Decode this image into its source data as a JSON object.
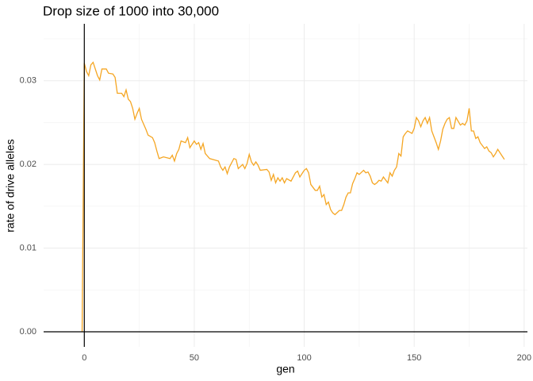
{
  "chart_data": {
    "type": "line",
    "title": "Drop size of 1000 into 30,000",
    "x_label": "gen",
    "y_label": "rate of drive alleles",
    "x": [
      -1,
      0,
      1,
      2,
      3,
      4,
      6,
      7,
      8,
      10,
      11,
      13,
      14,
      15,
      17,
      18,
      19,
      20,
      21,
      22,
      23,
      24,
      25,
      26,
      28,
      29,
      31,
      32,
      33,
      34,
      36,
      39,
      40,
      41,
      42,
      43,
      44,
      46,
      47,
      48,
      50,
      51,
      52,
      53,
      54,
      55,
      57,
      61,
      62,
      63,
      64,
      65,
      66,
      68,
      69,
      70,
      72,
      73,
      74,
      75,
      76,
      77,
      78,
      79,
      80,
      83,
      84,
      85,
      86,
      87,
      88,
      89,
      90,
      91,
      92,
      94,
      95,
      96,
      97,
      98,
      99,
      100,
      101,
      102,
      103,
      105,
      106,
      107,
      108,
      109,
      110,
      111,
      112,
      113,
      114,
      116,
      117,
      118,
      119,
      120,
      121,
      122,
      123,
      124,
      125,
      127,
      128,
      129,
      130,
      131,
      132,
      133,
      134,
      135,
      136,
      138,
      139,
      140,
      141,
      142,
      143,
      144,
      145,
      146,
      147,
      149,
      150,
      151,
      152,
      153,
      154,
      155,
      156,
      157,
      158,
      160,
      161,
      162,
      163,
      164,
      165,
      166,
      167,
      168,
      169,
      171,
      172,
      173,
      174,
      175,
      176,
      177,
      178,
      179,
      180,
      182,
      183,
      184,
      185,
      186,
      187,
      188,
      189,
      190,
      191
    ],
    "series": [
      {
        "name": "rate",
        "color": "#f5a623",
        "values": [
          0,
          0.0321,
          0.0311,
          0.0306,
          0.0319,
          0.0322,
          0.0306,
          0.0301,
          0.0314,
          0.0314,
          0.0309,
          0.0308,
          0.0304,
          0.0285,
          0.0285,
          0.0281,
          0.0289,
          0.0278,
          0.0275,
          0.0267,
          0.0254,
          0.0261,
          0.0267,
          0.0254,
          0.0242,
          0.0235,
          0.0232,
          0.0226,
          0.0216,
          0.0207,
          0.0209,
          0.0207,
          0.0211,
          0.0204,
          0.0213,
          0.0218,
          0.0228,
          0.0226,
          0.0232,
          0.022,
          0.0228,
          0.0224,
          0.0226,
          0.0218,
          0.0225,
          0.0213,
          0.0207,
          0.0204,
          0.0197,
          0.0193,
          0.0197,
          0.0189,
          0.0197,
          0.0207,
          0.0206,
          0.0195,
          0.02,
          0.0195,
          0.0201,
          0.0212,
          0.0203,
          0.0199,
          0.0203,
          0.0199,
          0.0193,
          0.0194,
          0.0191,
          0.0181,
          0.0188,
          0.0178,
          0.0184,
          0.018,
          0.0184,
          0.0178,
          0.0183,
          0.018,
          0.0185,
          0.019,
          0.0192,
          0.0185,
          0.0189,
          0.0193,
          0.0195,
          0.019,
          0.0176,
          0.0169,
          0.0169,
          0.0174,
          0.0161,
          0.0164,
          0.0152,
          0.0155,
          0.0146,
          0.0142,
          0.014,
          0.0145,
          0.0145,
          0.0152,
          0.0161,
          0.0166,
          0.0166,
          0.0177,
          0.0183,
          0.019,
          0.0188,
          0.0193,
          0.019,
          0.0191,
          0.0186,
          0.0178,
          0.0176,
          0.0178,
          0.0181,
          0.018,
          0.0185,
          0.0178,
          0.019,
          0.0186,
          0.0193,
          0.0197,
          0.0213,
          0.021,
          0.0233,
          0.0237,
          0.024,
          0.0237,
          0.0243,
          0.0256,
          0.0252,
          0.0245,
          0.0252,
          0.0256,
          0.0249,
          0.0256,
          0.024,
          0.0226,
          0.0218,
          0.0228,
          0.0242,
          0.0249,
          0.0254,
          0.0256,
          0.0243,
          0.0243,
          0.0256,
          0.0247,
          0.0249,
          0.0247,
          0.0252,
          0.0267,
          0.024,
          0.024,
          0.0231,
          0.0233,
          0.0226,
          0.0219,
          0.0221,
          0.0216,
          0.0214,
          0.0209,
          0.0213,
          0.0218,
          0.0214,
          0.021,
          0.0206
        ]
      }
    ],
    "xlim": [
      -18.5,
      201.5
    ],
    "ylim": [
      -0.0018,
      0.0368
    ],
    "xticks": [
      0,
      50,
      100,
      150,
      200
    ],
    "yticks": [
      {
        "value": 0,
        "label": "0.00"
      },
      0.01,
      0.02,
      0.03
    ],
    "reference_lines": {
      "x": 0,
      "y": 0
    },
    "grid": true
  }
}
